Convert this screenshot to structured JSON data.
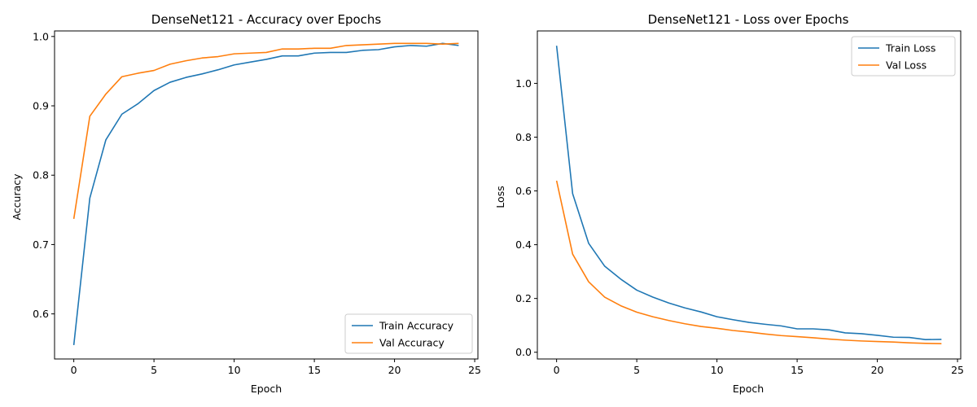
{
  "chart_data": [
    {
      "type": "line",
      "title": "DenseNet121 - Accuracy over Epochs",
      "xlabel": "Epoch",
      "ylabel": "Accuracy",
      "xlim": [
        -1.2,
        25.2
      ],
      "ylim": [
        0.535,
        1.008
      ],
      "xticks": [
        0,
        5,
        10,
        15,
        20,
        25
      ],
      "yticks": [
        0.6,
        0.7,
        0.8,
        0.9,
        1.0
      ],
      "ytick_labels": [
        "0.6",
        "0.7",
        "0.8",
        "0.9",
        "1.0"
      ],
      "legend_position": "lower-right",
      "grid": false,
      "x": [
        0,
        1,
        2,
        3,
        4,
        5,
        6,
        7,
        8,
        9,
        10,
        11,
        12,
        13,
        14,
        15,
        16,
        17,
        18,
        19,
        20,
        21,
        22,
        23,
        24
      ],
      "series": [
        {
          "name": "Train Accuracy",
          "color": "#1f77b4",
          "values": [
            0.555,
            0.767,
            0.851,
            0.888,
            0.903,
            0.922,
            0.934,
            0.941,
            0.946,
            0.952,
            0.959,
            0.963,
            0.967,
            0.972,
            0.972,
            0.976,
            0.977,
            0.977,
            0.98,
            0.981,
            0.985,
            0.987,
            0.986,
            0.99,
            0.987
          ]
        },
        {
          "name": "Val Accuracy",
          "color": "#ff7f0e",
          "values": [
            0.737,
            0.885,
            0.917,
            0.942,
            0.947,
            0.951,
            0.96,
            0.965,
            0.969,
            0.971,
            0.975,
            0.976,
            0.977,
            0.982,
            0.982,
            0.983,
            0.983,
            0.987,
            0.988,
            0.989,
            0.99,
            0.99,
            0.99,
            0.989,
            0.99
          ]
        }
      ]
    },
    {
      "type": "line",
      "title": "DenseNet121 - Loss over Epochs",
      "xlabel": "Epoch",
      "ylabel": "Loss",
      "xlim": [
        -1.2,
        25.2
      ],
      "ylim": [
        -0.025,
        1.195
      ],
      "xticks": [
        0,
        5,
        10,
        15,
        20,
        25
      ],
      "yticks": [
        0.0,
        0.2,
        0.4,
        0.6,
        0.8,
        1.0
      ],
      "ytick_labels": [
        "0.0",
        "0.2",
        "0.4",
        "0.6",
        "0.8",
        "1.0"
      ],
      "legend_position": "upper-right",
      "grid": false,
      "x": [
        0,
        1,
        2,
        3,
        4,
        5,
        6,
        7,
        8,
        9,
        10,
        11,
        12,
        13,
        14,
        15,
        16,
        17,
        18,
        19,
        20,
        21,
        22,
        23,
        24
      ],
      "series": [
        {
          "name": "Train Loss",
          "color": "#1f77b4",
          "values": [
            1.14,
            0.59,
            0.405,
            0.32,
            0.272,
            0.231,
            0.205,
            0.183,
            0.165,
            0.15,
            0.132,
            0.121,
            0.111,
            0.104,
            0.098,
            0.087,
            0.087,
            0.083,
            0.072,
            0.069,
            0.063,
            0.056,
            0.055,
            0.047,
            0.048
          ]
        },
        {
          "name": "Val Loss",
          "color": "#ff7f0e",
          "values": [
            0.638,
            0.365,
            0.262,
            0.205,
            0.173,
            0.149,
            0.132,
            0.118,
            0.106,
            0.096,
            0.089,
            0.081,
            0.075,
            0.068,
            0.062,
            0.058,
            0.054,
            0.049,
            0.045,
            0.042,
            0.04,
            0.038,
            0.035,
            0.033,
            0.032
          ]
        }
      ]
    }
  ]
}
